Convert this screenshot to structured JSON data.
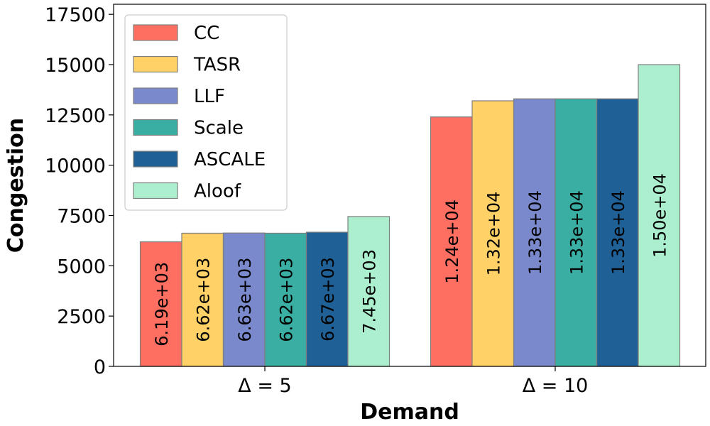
{
  "chart_data": {
    "type": "bar",
    "xlabel": "Demand",
    "ylabel": "Congestion",
    "categories": [
      "Δ = 5",
      "Δ = 10"
    ],
    "ylim": [
      0,
      18000
    ],
    "yticks": [
      0,
      2500,
      5000,
      7500,
      10000,
      12500,
      15000,
      17500
    ],
    "ytick_labels": [
      "0",
      "2500",
      "5000",
      "7500",
      "10000",
      "12500",
      "15000",
      "17500"
    ],
    "legend_position": "top-left",
    "grid": false,
    "series": [
      {
        "name": "CC",
        "color": "#ff6f61",
        "values": [
          6190,
          12400
        ],
        "labels": [
          "6.19e+03",
          "1.24e+04"
        ]
      },
      {
        "name": "TASR",
        "color": "#ffd166",
        "values": [
          6620,
          13200
        ],
        "labels": [
          "6.62e+03",
          "1.32e+04"
        ]
      },
      {
        "name": "LLF",
        "color": "#7a88cc",
        "values": [
          6630,
          13300
        ],
        "labels": [
          "6.63e+03",
          "1.33e+04"
        ]
      },
      {
        "name": "Scale",
        "color": "#3aaea3",
        "values": [
          6620,
          13300
        ],
        "labels": [
          "6.62e+03",
          "1.33e+04"
        ]
      },
      {
        "name": "ASCALE",
        "color": "#1f6196",
        "values": [
          6670,
          13300
        ],
        "labels": [
          "6.67e+03",
          "1.33e+04"
        ]
      },
      {
        "name": "Aloof",
        "color": "#abefcf",
        "values": [
          7450,
          15000
        ],
        "labels": [
          "7.45e+03",
          "1.50e+04"
        ]
      }
    ]
  }
}
